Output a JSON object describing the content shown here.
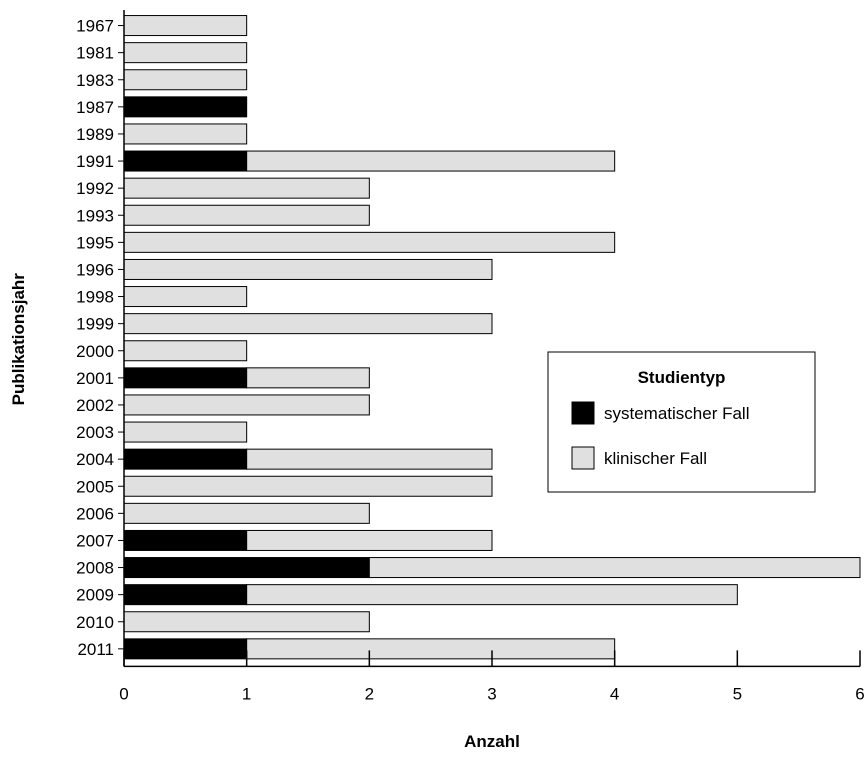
{
  "chart_data": {
    "type": "bar",
    "orientation": "horizontal",
    "stacked": true,
    "categories": [
      "1967",
      "1981",
      "1983",
      "1987",
      "1989",
      "1991",
      "1992",
      "1993",
      "1995",
      "1996",
      "1998",
      "1999",
      "2000",
      "2001",
      "2002",
      "2003",
      "2004",
      "2005",
      "2006",
      "2007",
      "2008",
      "2009",
      "2010",
      "2011"
    ],
    "series": [
      {
        "name": "systematischer Fall",
        "color": "#000000",
        "values": [
          0,
          0,
          0,
          1,
          0,
          1,
          0,
          0,
          0,
          0,
          0,
          0,
          0,
          1,
          0,
          0,
          1,
          0,
          0,
          1,
          2,
          1,
          0,
          1
        ]
      },
      {
        "name": "klinischer Fall",
        "color": "#e0e0e0",
        "values": [
          1,
          1,
          1,
          0,
          1,
          3,
          2,
          2,
          4,
          3,
          1,
          3,
          1,
          1,
          2,
          1,
          2,
          3,
          2,
          2,
          4,
          4,
          2,
          3
        ]
      }
    ],
    "xlabel": "Anzahl",
    "ylabel": "Publikationsjahr",
    "xlim": [
      0,
      6
    ],
    "xticks": [
      0,
      1,
      2,
      3,
      4,
      5,
      6
    ],
    "legend": {
      "title": "Studientyp",
      "position": "right"
    },
    "grid": false
  }
}
